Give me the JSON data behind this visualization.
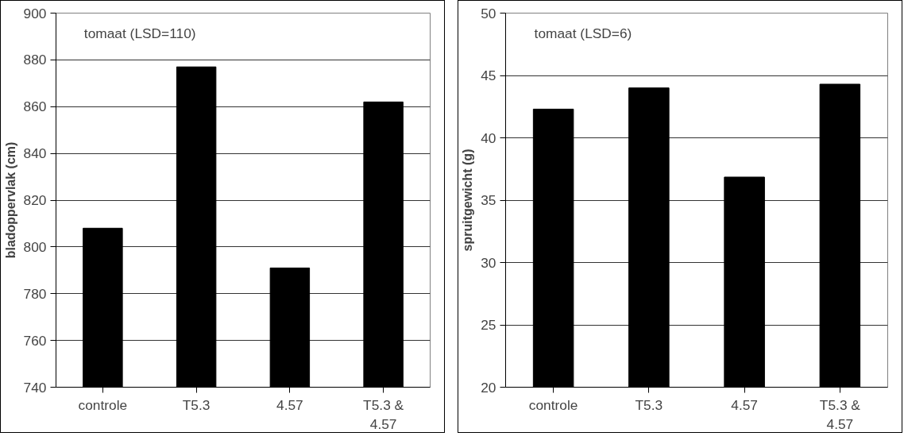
{
  "chart_data": [
    {
      "type": "bar",
      "categories": [
        "controle",
        "T5.3",
        "4.57",
        "T5.3 & 4.57"
      ],
      "values": [
        808,
        877,
        791,
        862
      ],
      "color": "#000000",
      "ylabel": "bladoppervlak (cm)",
      "ylim": [
        740,
        900
      ],
      "yticks": [
        740,
        760,
        780,
        800,
        820,
        840,
        860,
        880,
        900
      ],
      "grid": "y",
      "annotations": [
        "tomaat (LSD=110)"
      ]
    },
    {
      "type": "bar",
      "categories": [
        "controle",
        "T5.3",
        "4.57",
        "T5.3 & 4.57"
      ],
      "values": [
        42.3,
        44.0,
        36.85,
        44.3
      ],
      "color": "#000000",
      "ylabel": "spruitgewicht (g)",
      "ylim": [
        20,
        50
      ],
      "yticks": [
        20,
        25,
        30,
        35,
        40,
        45,
        50
      ],
      "grid": "y",
      "annotations": [
        "tomaat (LSD=6)"
      ]
    }
  ]
}
